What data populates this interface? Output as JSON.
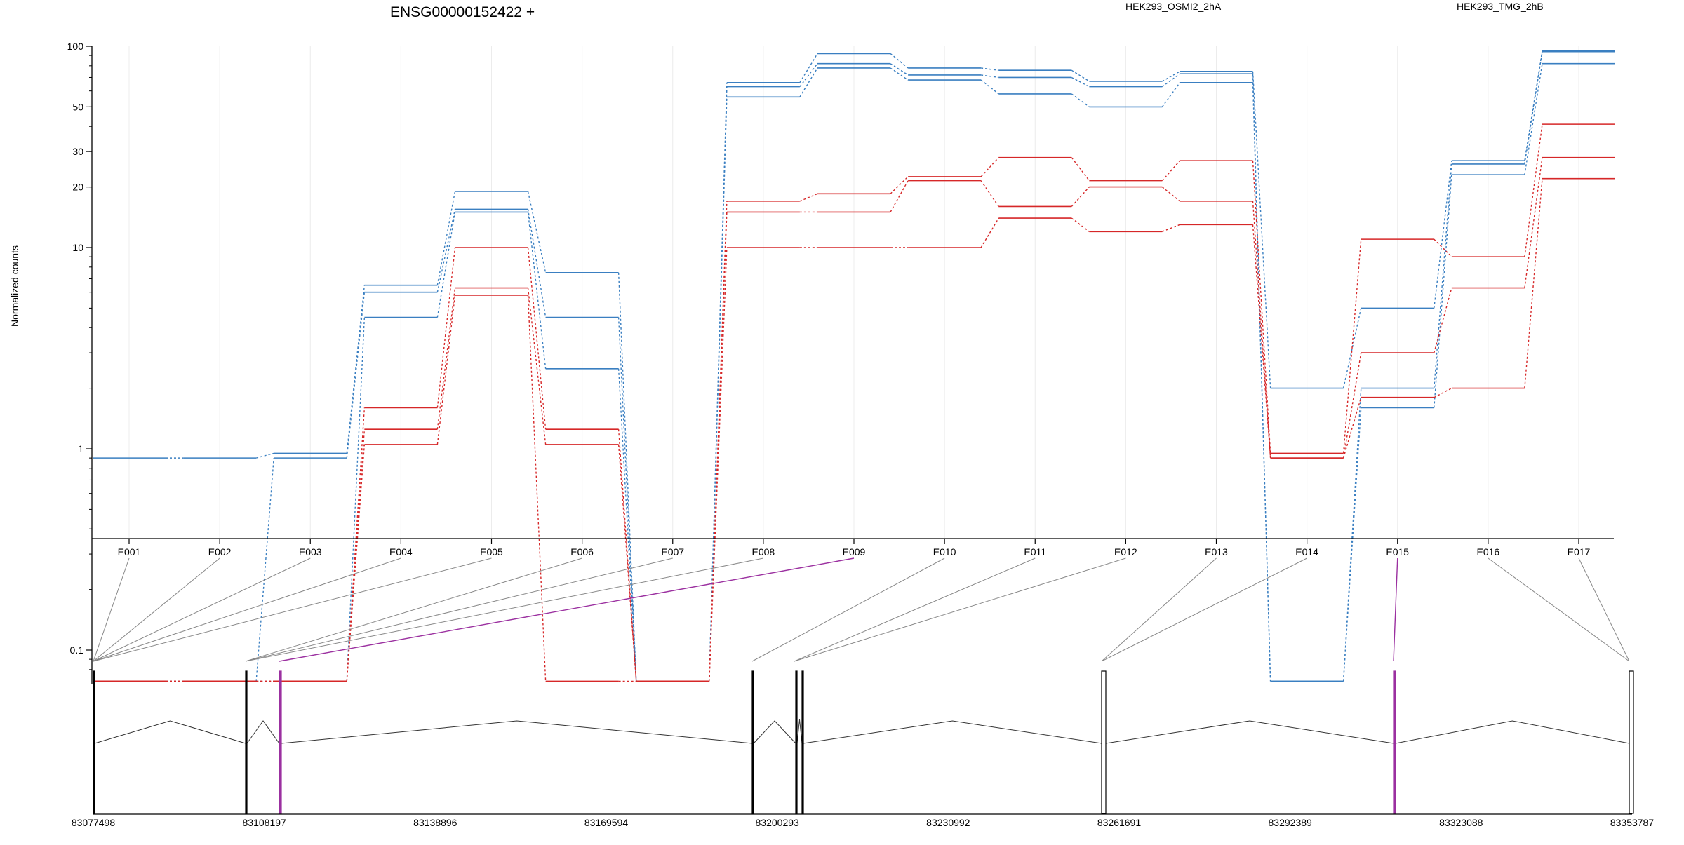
{
  "chart_data": {
    "type": "line",
    "title": "ENSG00000152422 +",
    "ylabel": "Normalized counts",
    "yscale": "log",
    "ylim": [
      0.07,
      100
    ],
    "yticks": [
      {
        "value": 0.1,
        "label": "0.1"
      },
      {
        "value": 1,
        "label": "1"
      },
      {
        "value": 10,
        "label": "10"
      },
      {
        "value": 20,
        "label": "20"
      },
      {
        "value": 30,
        "label": "30"
      },
      {
        "value": 50,
        "label": "50"
      },
      {
        "value": 100,
        "label": "100"
      }
    ],
    "categories": [
      "E001",
      "E002",
      "E003",
      "E004",
      "E005",
      "E006",
      "E007",
      "E008",
      "E009",
      "E010",
      "E011",
      "E012",
      "E013",
      "E014",
      "E015",
      "E016",
      "E017"
    ],
    "legend": [
      {
        "label": "HEK293_OSMI2_2hA",
        "color": "#d62728"
      },
      {
        "label": "HEK293_TMG_2hB",
        "color": "#3a7fc1"
      }
    ],
    "colors": {
      "red": "#d62728",
      "blue": "#3a7fc1",
      "highlight": "#9b30a0",
      "gray": "#888888"
    },
    "series": [
      {
        "group": "HEK293_TMG_2hB",
        "color": "#3a7fc1",
        "values": [
          0.9,
          0.9,
          0.95,
          6.5,
          19,
          7.5,
          0.07,
          66,
          92,
          78,
          76,
          67,
          75,
          2,
          5,
          27,
          95
        ]
      },
      {
        "group": "HEK293_TMG_2hB",
        "color": "#3a7fc1",
        "values": [
          0.07,
          0.07,
          0.9,
          6.0,
          15.5,
          4.5,
          0.07,
          63,
          82,
          72,
          70,
          63,
          73,
          0.07,
          2.0,
          26,
          94
        ]
      },
      {
        "group": "HEK293_TMG_2hB",
        "color": "#3a7fc1",
        "values": [
          0.07,
          0.07,
          0.07,
          4.5,
          15,
          2.5,
          0.07,
          56,
          78,
          68,
          58,
          50,
          66,
          0.07,
          1.6,
          23,
          82
        ]
      },
      {
        "group": "HEK293_OSMI2_2hA",
        "color": "#d62728",
        "values": [
          0.07,
          0.07,
          0.07,
          1.6,
          10,
          1.25,
          0.07,
          17,
          18.5,
          22.5,
          28,
          21.5,
          27,
          0.95,
          11,
          9,
          41
        ]
      },
      {
        "group": "HEK293_OSMI2_2hA",
        "color": "#d62728",
        "values": [
          0.07,
          0.07,
          0.07,
          1.25,
          6.3,
          1.05,
          0.07,
          15,
          15,
          21.5,
          16,
          20,
          17,
          0.9,
          3.0,
          6.3,
          28
        ]
      },
      {
        "group": "HEK293_OSMI2_2hA",
        "color": "#d62728",
        "values": [
          0.07,
          0.07,
          0.07,
          1.05,
          5.8,
          0.07,
          0.07,
          10,
          10,
          10,
          14,
          12,
          13,
          0.9,
          1.8,
          2.0,
          22
        ]
      }
    ],
    "genomic_axis": {
      "ticks": [
        "83077498",
        "83108197",
        "83138896",
        "83169594",
        "83200293",
        "83230992",
        "83261691",
        "83292389",
        "83323088",
        "83353787"
      ]
    }
  }
}
